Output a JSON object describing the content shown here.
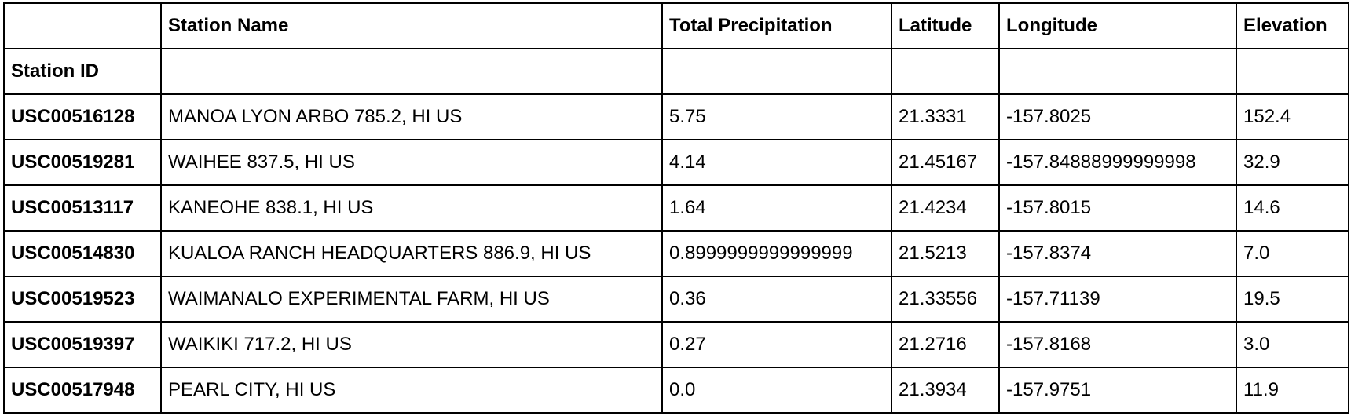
{
  "table": {
    "columns": [
      "",
      "Station Name",
      "Total Precipitation",
      "Latitude",
      "Longitude",
      "Elevation"
    ],
    "index_name": "Station ID",
    "rows": [
      [
        "USC00516128",
        "MANOA LYON ARBO 785.2, HI US",
        "5.75",
        "21.3331",
        "-157.8025",
        "152.4"
      ],
      [
        "USC00519281",
        "WAIHEE 837.5, HI US",
        "4.14",
        "21.45167",
        "-157.84888999999998",
        "32.9"
      ],
      [
        "USC00513117",
        "KANEOHE 838.1, HI US",
        "1.64",
        "21.4234",
        "-157.8015",
        "14.6"
      ],
      [
        "USC00514830",
        "KUALOA RANCH HEADQUARTERS 886.9, HI US",
        "0.8999999999999999",
        "21.5213",
        "-157.8374",
        "7.0"
      ],
      [
        "USC00519523",
        "WAIMANALO EXPERIMENTAL FARM, HI US",
        "0.36",
        "21.33556",
        "-157.71139",
        "19.5"
      ],
      [
        "USC00519397",
        "WAIKIKI 717.2, HI US",
        "0.27",
        "21.2716",
        "-157.8168",
        "3.0"
      ],
      [
        "USC00517948",
        "PEARL CITY, HI US",
        "0.0",
        "21.3934",
        "-157.9751",
        "11.9"
      ]
    ]
  }
}
